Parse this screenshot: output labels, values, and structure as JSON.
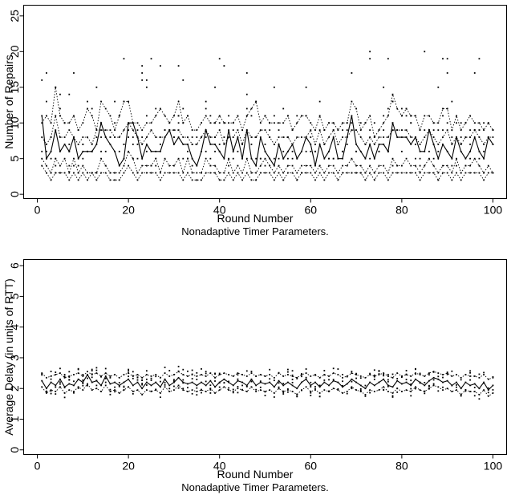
{
  "chart_data": [
    {
      "type": "line",
      "xlabel": "Round Number",
      "caption": "Nonadaptive Timer Parameters.",
      "ylabel": "Number of Repairs",
      "xlim": [
        -3,
        103
      ],
      "ylim": [
        -0.6,
        26.5
      ],
      "xticks": [
        0,
        20,
        40,
        60,
        80,
        100
      ],
      "yticks": [
        0,
        5,
        10,
        15,
        20,
        25
      ],
      "scatter_seed": 11,
      "series": [
        {
          "style": "solid",
          "values": [
            11,
            5,
            6,
            9,
            6,
            7,
            6,
            8,
            5,
            6,
            6,
            6,
            7,
            10,
            8,
            7,
            6,
            4,
            5,
            10,
            10,
            8,
            5,
            7,
            6,
            6,
            6,
            8,
            9,
            7,
            8,
            7,
            7,
            5,
            4,
            6,
            9,
            7,
            7,
            6,
            5,
            9,
            6,
            8,
            5,
            9,
            5,
            4,
            8,
            6,
            5,
            4,
            7,
            5,
            6,
            7,
            5,
            6,
            8,
            7,
            4,
            7,
            5,
            6,
            8,
            5,
            5,
            8,
            11,
            7,
            6,
            5,
            7,
            5,
            7,
            7,
            6,
            10,
            8,
            8,
            8,
            7,
            8,
            6,
            6,
            9,
            7,
            5,
            7,
            6,
            5,
            8,
            6,
            5,
            6,
            8,
            6,
            5,
            8,
            7
          ]
        },
        {
          "style": "dotted",
          "values": [
            10,
            11,
            10,
            15,
            11,
            10,
            10,
            11,
            9,
            10,
            12,
            11,
            9,
            13,
            12,
            11,
            9,
            11,
            13,
            13,
            10,
            10,
            9,
            10,
            10,
            11,
            12,
            11,
            10,
            11,
            13,
            10,
            11,
            9,
            9,
            10,
            11,
            10,
            10,
            11,
            10,
            10,
            10,
            11,
            9,
            11,
            12,
            13,
            10,
            11,
            10,
            10,
            10,
            10,
            11,
            9,
            10,
            11,
            11,
            10,
            9,
            11,
            9,
            10,
            10,
            9,
            10,
            10,
            13,
            12,
            9,
            10,
            11,
            8,
            9,
            10,
            11,
            14,
            12,
            11,
            12,
            11,
            11,
            9,
            11,
            11,
            10,
            10,
            12,
            12,
            9,
            11,
            9,
            10,
            11,
            10,
            10,
            9,
            10,
            9
          ]
        },
        {
          "style": "dotted",
          "values": [
            8,
            7,
            8,
            11,
            8,
            8,
            9,
            8,
            7,
            8,
            8,
            7,
            9,
            9,
            9,
            9,
            8,
            8,
            9,
            10,
            9,
            8,
            7,
            8,
            9,
            8,
            8,
            8,
            9,
            9,
            9,
            8,
            8,
            7,
            7,
            8,
            9,
            8,
            8,
            9,
            7,
            8,
            8,
            9,
            7,
            9,
            8,
            8,
            9,
            9,
            8,
            7,
            8,
            8,
            8,
            7,
            8,
            8,
            8,
            9,
            7,
            9,
            7,
            8,
            9,
            7,
            8,
            8,
            9,
            9,
            8,
            7,
            8,
            7,
            8,
            8,
            8,
            9,
            9,
            9,
            9,
            8,
            8,
            7,
            8,
            9,
            8,
            7,
            8,
            9,
            7,
            8,
            7,
            8,
            8,
            9,
            8,
            7,
            8,
            8
          ]
        },
        {
          "style": "dotted",
          "values": [
            5,
            4,
            3,
            5,
            4,
            5,
            3,
            5,
            3,
            4,
            3,
            3,
            3,
            5,
            4,
            3,
            3,
            3,
            4,
            6,
            5,
            3,
            4,
            4,
            4,
            5,
            3,
            5,
            4,
            4,
            5,
            3,
            5,
            3,
            3,
            3,
            5,
            4,
            4,
            3,
            3,
            5,
            3,
            4,
            3,
            5,
            3,
            3,
            4,
            5,
            4,
            3,
            4,
            3,
            4,
            4,
            3,
            4,
            4,
            4,
            3,
            4,
            3,
            4,
            4,
            3,
            4,
            4,
            5,
            4,
            4,
            3,
            4,
            3,
            4,
            4,
            3,
            5,
            4,
            4,
            5,
            4,
            4,
            3,
            4,
            5,
            4,
            3,
            4,
            4,
            3,
            5,
            3,
            4,
            4,
            5,
            4,
            3,
            4,
            3
          ]
        },
        {
          "style": "dotted",
          "values": [
            4,
            3,
            2,
            3,
            3,
            3,
            2,
            3,
            2,
            3,
            2,
            3,
            2,
            3,
            3,
            2,
            2,
            2,
            3,
            4,
            3,
            2,
            3,
            3,
            3,
            3,
            2,
            3,
            3,
            3,
            3,
            2,
            3,
            2,
            2,
            2,
            3,
            3,
            3,
            2,
            2,
            3,
            2,
            3,
            2,
            3,
            2,
            2,
            3,
            3,
            3,
            2,
            3,
            2,
            3,
            3,
            2,
            3,
            3,
            3,
            2,
            3,
            2,
            3,
            3,
            2,
            3,
            3,
            3,
            3,
            3,
            2,
            3,
            2,
            3,
            3,
            2,
            3,
            3,
            3,
            3,
            3,
            3,
            2,
            3,
            3,
            3,
            2,
            3,
            3,
            2,
            3,
            2,
            3,
            3,
            3,
            3,
            2,
            3,
            3
          ]
        }
      ]
    },
    {
      "type": "line",
      "xlabel": "Round Number",
      "caption": "Nonadaptive Timer Parameters.",
      "ylabel": "Average Delay (in units of RTT)",
      "xlim": [
        -3,
        103
      ],
      "ylim": [
        -0.15,
        6.2
      ],
      "xticks": [
        0,
        20,
        40,
        60,
        80,
        100
      ],
      "yticks": [
        0,
        1,
        2,
        3,
        4,
        5,
        6
      ],
      "scatter_seed": 29,
      "series": [
        {
          "style": "solid",
          "values": [
            2.25,
            2.0,
            2.2,
            2.1,
            2.3,
            2.05,
            2.15,
            2.1,
            2.3,
            2.2,
            2.45,
            2.2,
            2.25,
            2.1,
            2.4,
            2.15,
            2.2,
            2.1,
            2.2,
            2.3,
            2.1,
            2.2,
            2.0,
            2.2,
            2.1,
            2.2,
            2.05,
            2.3,
            2.1,
            2.2,
            2.35,
            2.2,
            2.15,
            2.2,
            2.1,
            2.2,
            2.1,
            2.25,
            2.05,
            2.2,
            2.3,
            2.2,
            2.1,
            2.25,
            2.2,
            2.1,
            2.3,
            2.1,
            2.2,
            2.15,
            2.2,
            2.05,
            2.25,
            2.1,
            2.2,
            2.1,
            2.0,
            2.2,
            2.3,
            2.1,
            2.2,
            2.05,
            2.2,
            2.1,
            2.25,
            2.2,
            2.05,
            2.15,
            2.3,
            2.2,
            2.1,
            2.0,
            2.2,
            2.1,
            2.2,
            2.3,
            2.1,
            2.05,
            2.25,
            2.15,
            2.2,
            2.1,
            2.3,
            2.2,
            2.1,
            2.25,
            2.35,
            2.3,
            2.2,
            2.25,
            2.1,
            2.2,
            2.0,
            2.2,
            2.1,
            2.15,
            2.0,
            2.2,
            1.95,
            2.1
          ]
        },
        {
          "style": "dotted",
          "values": [
            2.5,
            2.35,
            2.4,
            2.45,
            2.5,
            2.35,
            2.4,
            2.45,
            2.5,
            2.4,
            2.55,
            2.45,
            2.5,
            2.4,
            2.5,
            2.4,
            2.45,
            2.35,
            2.45,
            2.5,
            2.4,
            2.45,
            2.35,
            2.45,
            2.4,
            2.45,
            2.35,
            2.5,
            2.4,
            2.45,
            2.55,
            2.45,
            2.4,
            2.45,
            2.4,
            2.45,
            2.4,
            2.5,
            2.35,
            2.45,
            2.5,
            2.45,
            2.4,
            2.5,
            2.45,
            2.4,
            2.5,
            2.4,
            2.45,
            2.4,
            2.45,
            2.35,
            2.5,
            2.4,
            2.45,
            2.4,
            2.35,
            2.45,
            2.5,
            2.4,
            2.45,
            2.35,
            2.45,
            2.4,
            2.5,
            2.45,
            2.35,
            2.4,
            2.5,
            2.45,
            2.4,
            2.35,
            2.45,
            2.4,
            2.45,
            2.5,
            2.4,
            2.35,
            2.5,
            2.4,
            2.45,
            2.4,
            2.5,
            2.45,
            2.4,
            2.5,
            2.55,
            2.5,
            2.45,
            2.5,
            2.4,
            2.45,
            2.35,
            2.45,
            2.4,
            2.4,
            2.35,
            2.45,
            2.3,
            2.35
          ]
        },
        {
          "style": "dotted",
          "values": [
            2.05,
            1.85,
            1.95,
            1.9,
            2.05,
            1.85,
            1.95,
            1.9,
            2.05,
            1.95,
            2.15,
            1.95,
            2.0,
            1.9,
            2.1,
            1.9,
            1.95,
            1.85,
            1.95,
            2.05,
            1.9,
            1.95,
            1.8,
            1.95,
            1.9,
            1.95,
            1.85,
            2.05,
            1.9,
            1.95,
            2.1,
            1.95,
            1.9,
            1.95,
            1.9,
            1.95,
            1.9,
            2.0,
            1.85,
            1.95,
            2.05,
            1.95,
            1.9,
            2.0,
            1.95,
            1.9,
            2.05,
            1.9,
            1.95,
            1.9,
            1.95,
            1.85,
            2.0,
            1.9,
            1.95,
            1.9,
            1.8,
            1.95,
            2.05,
            1.9,
            1.95,
            1.85,
            1.95,
            1.9,
            2.0,
            1.95,
            1.85,
            1.9,
            2.05,
            1.95,
            1.9,
            1.8,
            1.95,
            1.9,
            1.95,
            2.05,
            1.9,
            1.85,
            2.0,
            1.9,
            1.95,
            1.9,
            2.05,
            1.95,
            1.9,
            2.0,
            2.1,
            2.05,
            1.95,
            2.0,
            1.9,
            1.95,
            1.8,
            1.95,
            1.9,
            1.9,
            1.8,
            1.95,
            1.75,
            1.85
          ]
        }
      ]
    }
  ]
}
